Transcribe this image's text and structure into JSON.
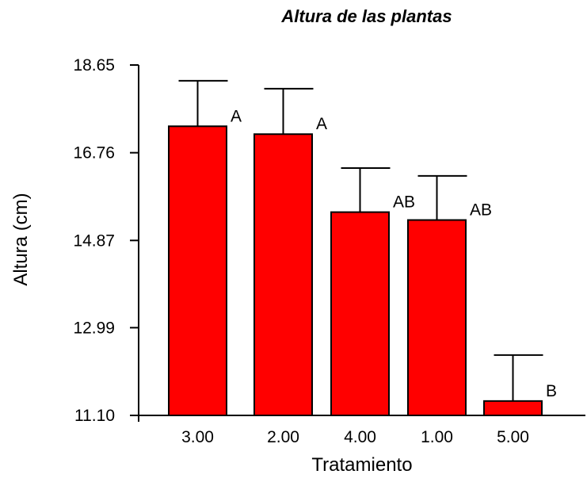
{
  "chart_data": {
    "type": "bar",
    "title": "Altura de las plantas",
    "xlabel": "Tratamiento",
    "ylabel": "Altura (cm)",
    "ylim": [
      11.1,
      18.65
    ],
    "yticks": [
      "11.10",
      "12.99",
      "14.87",
      "16.76",
      "18.65"
    ],
    "categories": [
      "3.00",
      "2.00",
      "4.00",
      "1.00",
      "5.00"
    ],
    "values": [
      17.33,
      17.16,
      15.48,
      15.31,
      11.41
    ],
    "error_upper": [
      18.31,
      18.14,
      16.43,
      16.26,
      12.4
    ],
    "significance_labels": [
      "A",
      "A",
      "AB",
      "AB",
      "B"
    ],
    "bar_color": "#ff0000",
    "grid": false,
    "legend": "none"
  }
}
